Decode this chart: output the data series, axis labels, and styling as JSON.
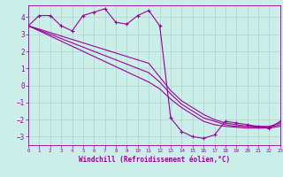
{
  "xlabel": "Windchill (Refroidissement éolien,°C)",
  "xlim": [
    0,
    23
  ],
  "ylim": [
    -3.5,
    4.7
  ],
  "bg_color": "#cceee8",
  "grid_color": "#aad4ce",
  "line_color": "#990099",
  "hours": [
    0,
    1,
    2,
    3,
    4,
    5,
    6,
    7,
    8,
    9,
    10,
    11,
    12,
    13,
    14,
    15,
    16,
    17,
    18,
    19,
    20,
    21,
    22,
    23
  ],
  "obs_y": [
    3.5,
    4.1,
    4.1,
    3.5,
    3.2,
    4.1,
    4.3,
    4.5,
    3.7,
    3.6,
    4.1,
    4.4,
    3.5,
    -1.9,
    -2.7,
    -3.0,
    -3.1,
    -2.9,
    -2.1,
    -2.2,
    -2.3,
    -2.4,
    -2.5,
    -2.1
  ],
  "diag1": [
    3.5,
    3.3,
    3.1,
    2.9,
    2.7,
    2.5,
    2.3,
    2.1,
    1.9,
    1.7,
    1.5,
    1.3,
    0.5,
    -0.3,
    -0.9,
    -1.3,
    -1.7,
    -2.0,
    -2.2,
    -2.3,
    -2.4,
    -2.4,
    -2.4,
    -2.2
  ],
  "diag2": [
    3.5,
    3.25,
    3.0,
    2.75,
    2.5,
    2.25,
    2.0,
    1.75,
    1.5,
    1.25,
    1.0,
    0.75,
    0.2,
    -0.5,
    -1.1,
    -1.5,
    -1.9,
    -2.1,
    -2.3,
    -2.4,
    -2.4,
    -2.45,
    -2.45,
    -2.3
  ],
  "diag3": [
    3.5,
    3.2,
    2.9,
    2.6,
    2.3,
    2.0,
    1.7,
    1.4,
    1.1,
    0.8,
    0.5,
    0.2,
    -0.2,
    -0.8,
    -1.3,
    -1.7,
    -2.1,
    -2.3,
    -2.4,
    -2.45,
    -2.5,
    -2.5,
    -2.5,
    -2.4
  ],
  "yticks": [
    -3,
    -2,
    -1,
    0,
    1,
    2,
    3,
    4
  ],
  "xticks": [
    0,
    1,
    2,
    3,
    4,
    5,
    6,
    7,
    8,
    9,
    10,
    11,
    12,
    13,
    14,
    15,
    16,
    17,
    18,
    19,
    20,
    21,
    22,
    23
  ]
}
